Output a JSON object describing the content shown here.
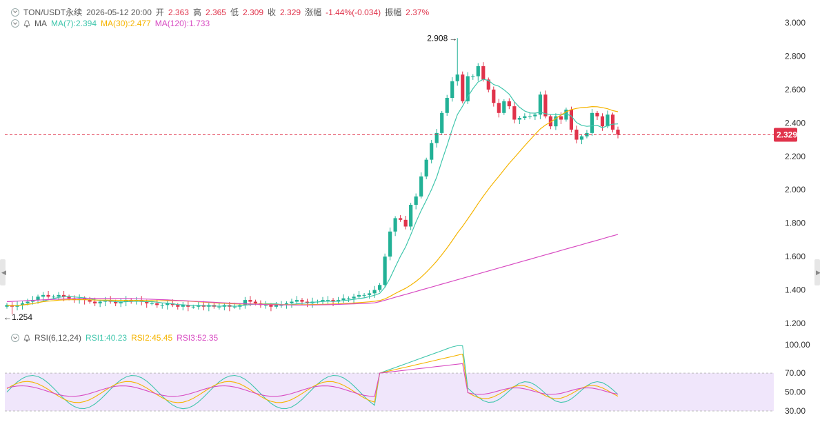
{
  "header": {
    "symbol": "TON/USDT永续",
    "datetime": "2026-05-12 20:00",
    "open_label": "开",
    "open": "2.363",
    "high_label": "高",
    "high": "2.365",
    "low_label": "低",
    "low": "2.309",
    "close_label": "收",
    "close": "2.329",
    "change_label": "涨幅",
    "change": "-1.44%(-0.034)",
    "amp_label": "振幅",
    "amp": "2.37%"
  },
  "ma": {
    "label": "MA",
    "ma7": "MA(7):2.394",
    "ma30": "MA(30):2.477",
    "ma120": "MA(120):1.733"
  },
  "rsi": {
    "label": "RSI(6,12,24)",
    "rsi1": "RSI1:40.23",
    "rsi2": "RSI2:45.45",
    "rsi3": "RSI3:52.35"
  },
  "price_axis": [
    "3.000",
    "2.800",
    "2.600",
    "2.400",
    "2.200",
    "2.000",
    "1.800",
    "1.600",
    "1.400",
    "1.200"
  ],
  "rsi_axis": [
    "100.00",
    "70.00",
    "50.00",
    "30.00"
  ],
  "last_price": "2.329",
  "high_marker": "2.908",
  "low_marker": "1.254",
  "colors": {
    "up": "#22b196",
    "down": "#e0334b",
    "ma7": "#3fc6ac",
    "ma30": "#f5b400",
    "ma120": "#d84bc2",
    "rsi_band": "#f0e6fb"
  },
  "chart_data": {
    "type": "candlestick",
    "title": "TON/USDT永续",
    "price_range": [
      1.2,
      3.0
    ],
    "rsi_range": [
      30,
      100
    ],
    "last_price": 2.329,
    "max_marker": 2.908,
    "min_marker": 1.254,
    "candles_approx_count": 100,
    "series": [
      {
        "name": "MA(7)",
        "last": 2.394
      },
      {
        "name": "MA(30)",
        "last": 2.477
      },
      {
        "name": "MA(120)",
        "last": 1.733
      },
      {
        "name": "RSI1",
        "last": 40.23
      },
      {
        "name": "RSI2",
        "last": 45.45
      },
      {
        "name": "RSI3",
        "last": 52.35
      }
    ]
  }
}
